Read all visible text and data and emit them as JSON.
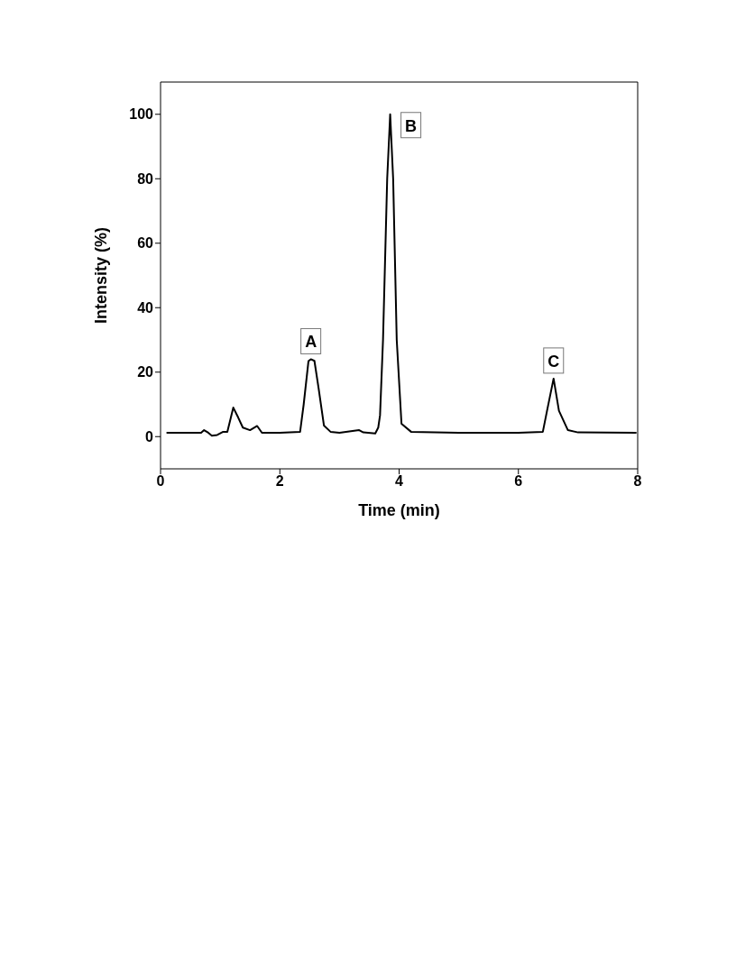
{
  "chart_data": {
    "type": "line",
    "xlabel": "Time (min)",
    "ylabel": "Intensity (%)",
    "x": [
      0.1,
      0.4,
      0.68,
      0.73,
      0.8,
      0.86,
      0.95,
      1.05,
      1.12,
      1.22,
      1.3,
      1.38,
      1.5,
      1.62,
      1.7,
      2.0,
      2.34,
      2.4,
      2.48,
      2.52,
      2.58,
      2.65,
      2.74,
      2.85,
      3.0,
      3.33,
      3.4,
      3.6,
      3.65,
      3.68,
      3.73,
      3.8,
      3.85,
      3.9,
      3.96,
      4.04,
      4.2,
      5.0,
      6.0,
      6.41,
      6.48,
      6.59,
      6.68,
      6.83,
      7.0,
      7.98
    ],
    "values": [
      1.2,
      1.2,
      1.2,
      2,
      1.2,
      0.3,
      0.5,
      1.5,
      1.5,
      9,
      6,
      2.8,
      2,
      3.3,
      1.2,
      1.2,
      1.5,
      10,
      23.4,
      24,
      23.5,
      15,
      3.4,
      1.5,
      1.2,
      2,
      1.3,
      1,
      2.8,
      6.6,
      30,
      80,
      100,
      80,
      30,
      4,
      1.5,
      1.2,
      1.2,
      1.5,
      8,
      18,
      8,
      2,
      1.3,
      1.2
    ],
    "color": "#000000",
    "marker": "none",
    "line_style": "solid",
    "xlim": [
      0,
      8
    ],
    "xticks": [
      0,
      2,
      4,
      6,
      8
    ],
    "ylim": [
      -10,
      110
    ],
    "yticks": [
      0,
      20,
      40,
      60,
      80,
      100
    ],
    "grid": false,
    "legend": false,
    "annotations": [
      {
        "text": "A",
        "x": 2.52,
        "y": 24
      },
      {
        "text": "B",
        "x": 3.85,
        "y": 100
      },
      {
        "text": "C",
        "x": 6.59,
        "y": 18
      }
    ]
  }
}
